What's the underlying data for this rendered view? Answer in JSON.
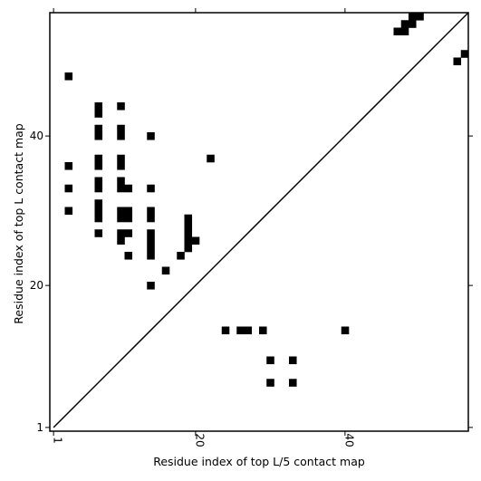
{
  "chart_data": {
    "type": "heatmap",
    "title": "",
    "xlabel": "Residue index of top L/5 contact map",
    "ylabel": "Residue index of top L contact map",
    "xlim": [
      0.5,
      56.5
    ],
    "ylim": [
      0.5,
      56.5
    ],
    "xticks": [
      1,
      20,
      40
    ],
    "yticks": [
      1,
      20,
      40
    ],
    "grid": false,
    "cell_color": "#000000",
    "diagonal": true,
    "cells": [
      [
        3,
        48
      ],
      [
        7,
        44
      ],
      [
        7,
        43
      ],
      [
        10,
        44
      ],
      [
        7,
        41
      ],
      [
        7,
        40
      ],
      [
        10,
        41
      ],
      [
        10,
        40
      ],
      [
        14,
        40
      ],
      [
        3,
        36
      ],
      [
        7,
        37
      ],
      [
        7,
        36
      ],
      [
        10,
        37
      ],
      [
        10,
        36
      ],
      [
        22,
        37
      ],
      [
        3,
        33
      ],
      [
        7,
        34
      ],
      [
        7,
        33
      ],
      [
        10,
        34
      ],
      [
        10,
        33
      ],
      [
        11,
        33
      ],
      [
        14,
        33
      ],
      [
        3,
        30
      ],
      [
        7,
        31
      ],
      [
        7,
        30
      ],
      [
        7,
        29
      ],
      [
        10,
        30
      ],
      [
        11,
        30
      ],
      [
        10,
        29
      ],
      [
        11,
        29
      ],
      [
        14,
        30
      ],
      [
        14,
        29
      ],
      [
        19,
        29
      ],
      [
        19,
        28
      ],
      [
        7,
        27
      ],
      [
        10,
        27
      ],
      [
        11,
        27
      ],
      [
        14,
        27
      ],
      [
        19,
        27
      ],
      [
        10,
        26
      ],
      [
        14,
        26
      ],
      [
        19,
        26
      ],
      [
        20,
        26
      ],
      [
        14,
        25
      ],
      [
        19,
        25
      ],
      [
        11,
        24
      ],
      [
        14,
        24
      ],
      [
        18,
        24
      ],
      [
        16,
        22
      ],
      [
        14,
        20
      ],
      [
        48,
        55
      ],
      [
        49,
        55
      ],
      [
        50,
        56
      ],
      [
        49,
        56
      ],
      [
        47,
        54
      ],
      [
        48,
        54
      ],
      [
        55,
        50
      ],
      [
        56,
        51
      ],
      [
        24,
        14
      ],
      [
        26,
        14
      ],
      [
        27,
        14
      ],
      [
        29,
        14
      ],
      [
        40,
        14
      ],
      [
        30,
        10
      ],
      [
        33,
        10
      ],
      [
        30,
        7
      ],
      [
        33,
        7
      ]
    ]
  }
}
